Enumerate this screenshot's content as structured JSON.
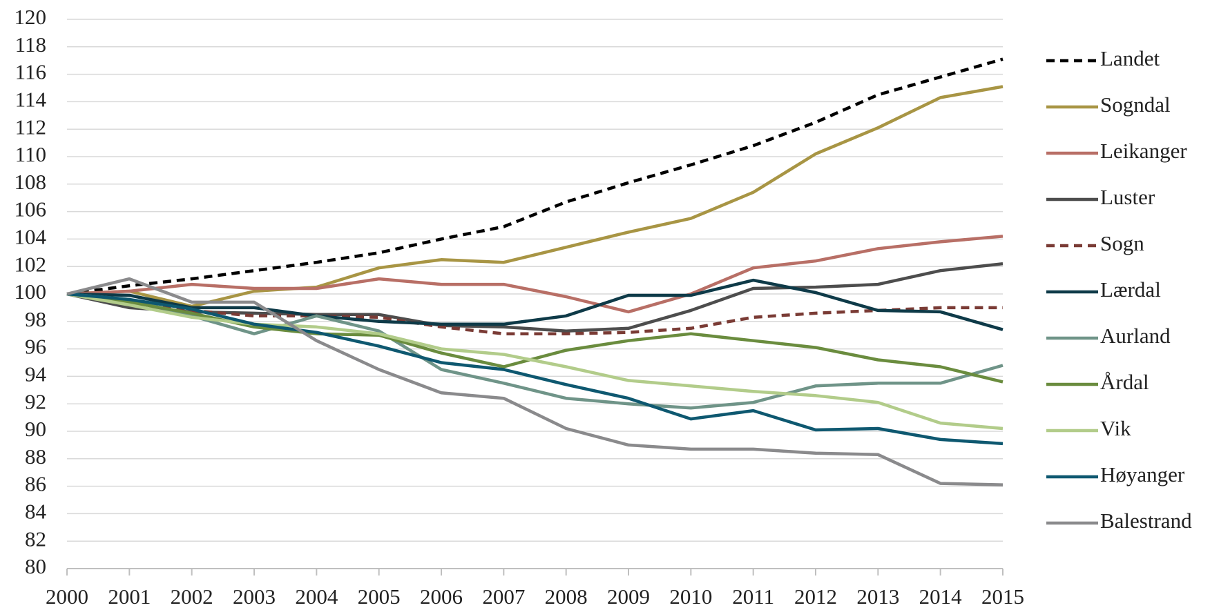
{
  "chart_data": {
    "type": "line",
    "x": [
      2000,
      2001,
      2002,
      2003,
      2004,
      2005,
      2006,
      2007,
      2008,
      2009,
      2010,
      2011,
      2012,
      2013,
      2014,
      2015
    ],
    "xlim": [
      2000,
      2015
    ],
    "xticks": [
      2000,
      2001,
      2002,
      2003,
      2004,
      2005,
      2006,
      2007,
      2008,
      2009,
      2010,
      2011,
      2012,
      2013,
      2014,
      2015
    ],
    "ylim": [
      80,
      120
    ],
    "yticks": [
      80,
      82,
      84,
      86,
      88,
      90,
      92,
      94,
      96,
      98,
      100,
      102,
      104,
      106,
      108,
      110,
      112,
      114,
      116,
      118,
      120
    ],
    "grid": true,
    "legend": "right",
    "series": [
      {
        "name": "Landet",
        "color": "#000000",
        "dashed": true,
        "values": [
          100,
          100.6,
          101.1,
          101.7,
          102.3,
          103.0,
          104.0,
          104.9,
          106.7,
          108.1,
          109.4,
          110.8,
          112.5,
          114.5,
          115.8,
          117.1
        ]
      },
      {
        "name": "Sogndal",
        "color": "#a89544",
        "values": [
          100,
          100.2,
          99.1,
          100.2,
          100.5,
          101.9,
          102.5,
          102.3,
          103.4,
          104.5,
          105.5,
          107.4,
          110.2,
          112.1,
          114.3,
          115.1
        ]
      },
      {
        "name": "Leikanger",
        "color": "#b86f66",
        "values": [
          100,
          100.2,
          100.7,
          100.4,
          100.4,
          101.1,
          100.7,
          100.7,
          99.8,
          98.7,
          100.0,
          101.9,
          102.4,
          103.3,
          103.8,
          104.2
        ]
      },
      {
        "name": "Luster",
        "color": "#4d4d4d",
        "values": [
          100,
          99.0,
          98.7,
          98.6,
          98.5,
          98.5,
          97.7,
          97.6,
          97.3,
          97.5,
          98.8,
          100.4,
          100.5,
          100.7,
          101.7,
          102.2
        ]
      },
      {
        "name": "Sogn",
        "color": "#7a3b35",
        "dashed": true,
        "values": [
          100,
          99.3,
          98.8,
          98.4,
          98.4,
          98.3,
          97.6,
          97.1,
          97.1,
          97.2,
          97.5,
          98.3,
          98.6,
          98.8,
          99.0,
          99.0
        ]
      },
      {
        "name": "Lærdal",
        "color": "#0e3a48",
        "values": [
          100,
          99.9,
          99.0,
          99.0,
          98.4,
          98.0,
          97.8,
          97.8,
          98.4,
          99.9,
          99.9,
          101.0,
          100.1,
          98.8,
          98.7,
          97.4
        ]
      },
      {
        "name": "Aurland",
        "color": "#6f9488",
        "values": [
          100,
          99.6,
          98.4,
          97.1,
          98.4,
          97.3,
          94.5,
          93.5,
          92.4,
          92.0,
          91.7,
          92.1,
          93.3,
          93.5,
          93.5,
          94.8
        ]
      },
      {
        "name": "Årdal",
        "color": "#6a8c3e",
        "values": [
          100,
          99.4,
          98.6,
          97.6,
          97.1,
          97.0,
          95.7,
          94.7,
          95.9,
          96.6,
          97.1,
          96.6,
          96.1,
          95.2,
          94.7,
          93.6
        ]
      },
      {
        "name": "Vik",
        "color": "#b2cc8a",
        "values": [
          100,
          99.2,
          98.3,
          97.8,
          97.6,
          97.1,
          96.0,
          95.6,
          94.7,
          93.7,
          93.3,
          92.9,
          92.6,
          92.1,
          90.6,
          90.2
        ]
      },
      {
        "name": "Høyanger",
        "color": "#0e5870",
        "values": [
          100,
          99.6,
          98.9,
          97.8,
          97.2,
          96.2,
          95.0,
          94.5,
          93.4,
          92.4,
          90.9,
          91.5,
          90.1,
          90.2,
          89.4,
          89.1
        ]
      },
      {
        "name": "Balestrand",
        "color": "#8a8a8c",
        "values": [
          100,
          101.1,
          99.4,
          99.4,
          96.6,
          94.5,
          92.8,
          92.4,
          90.2,
          89.0,
          88.7,
          88.7,
          88.4,
          88.3,
          86.2,
          86.1
        ]
      }
    ]
  }
}
